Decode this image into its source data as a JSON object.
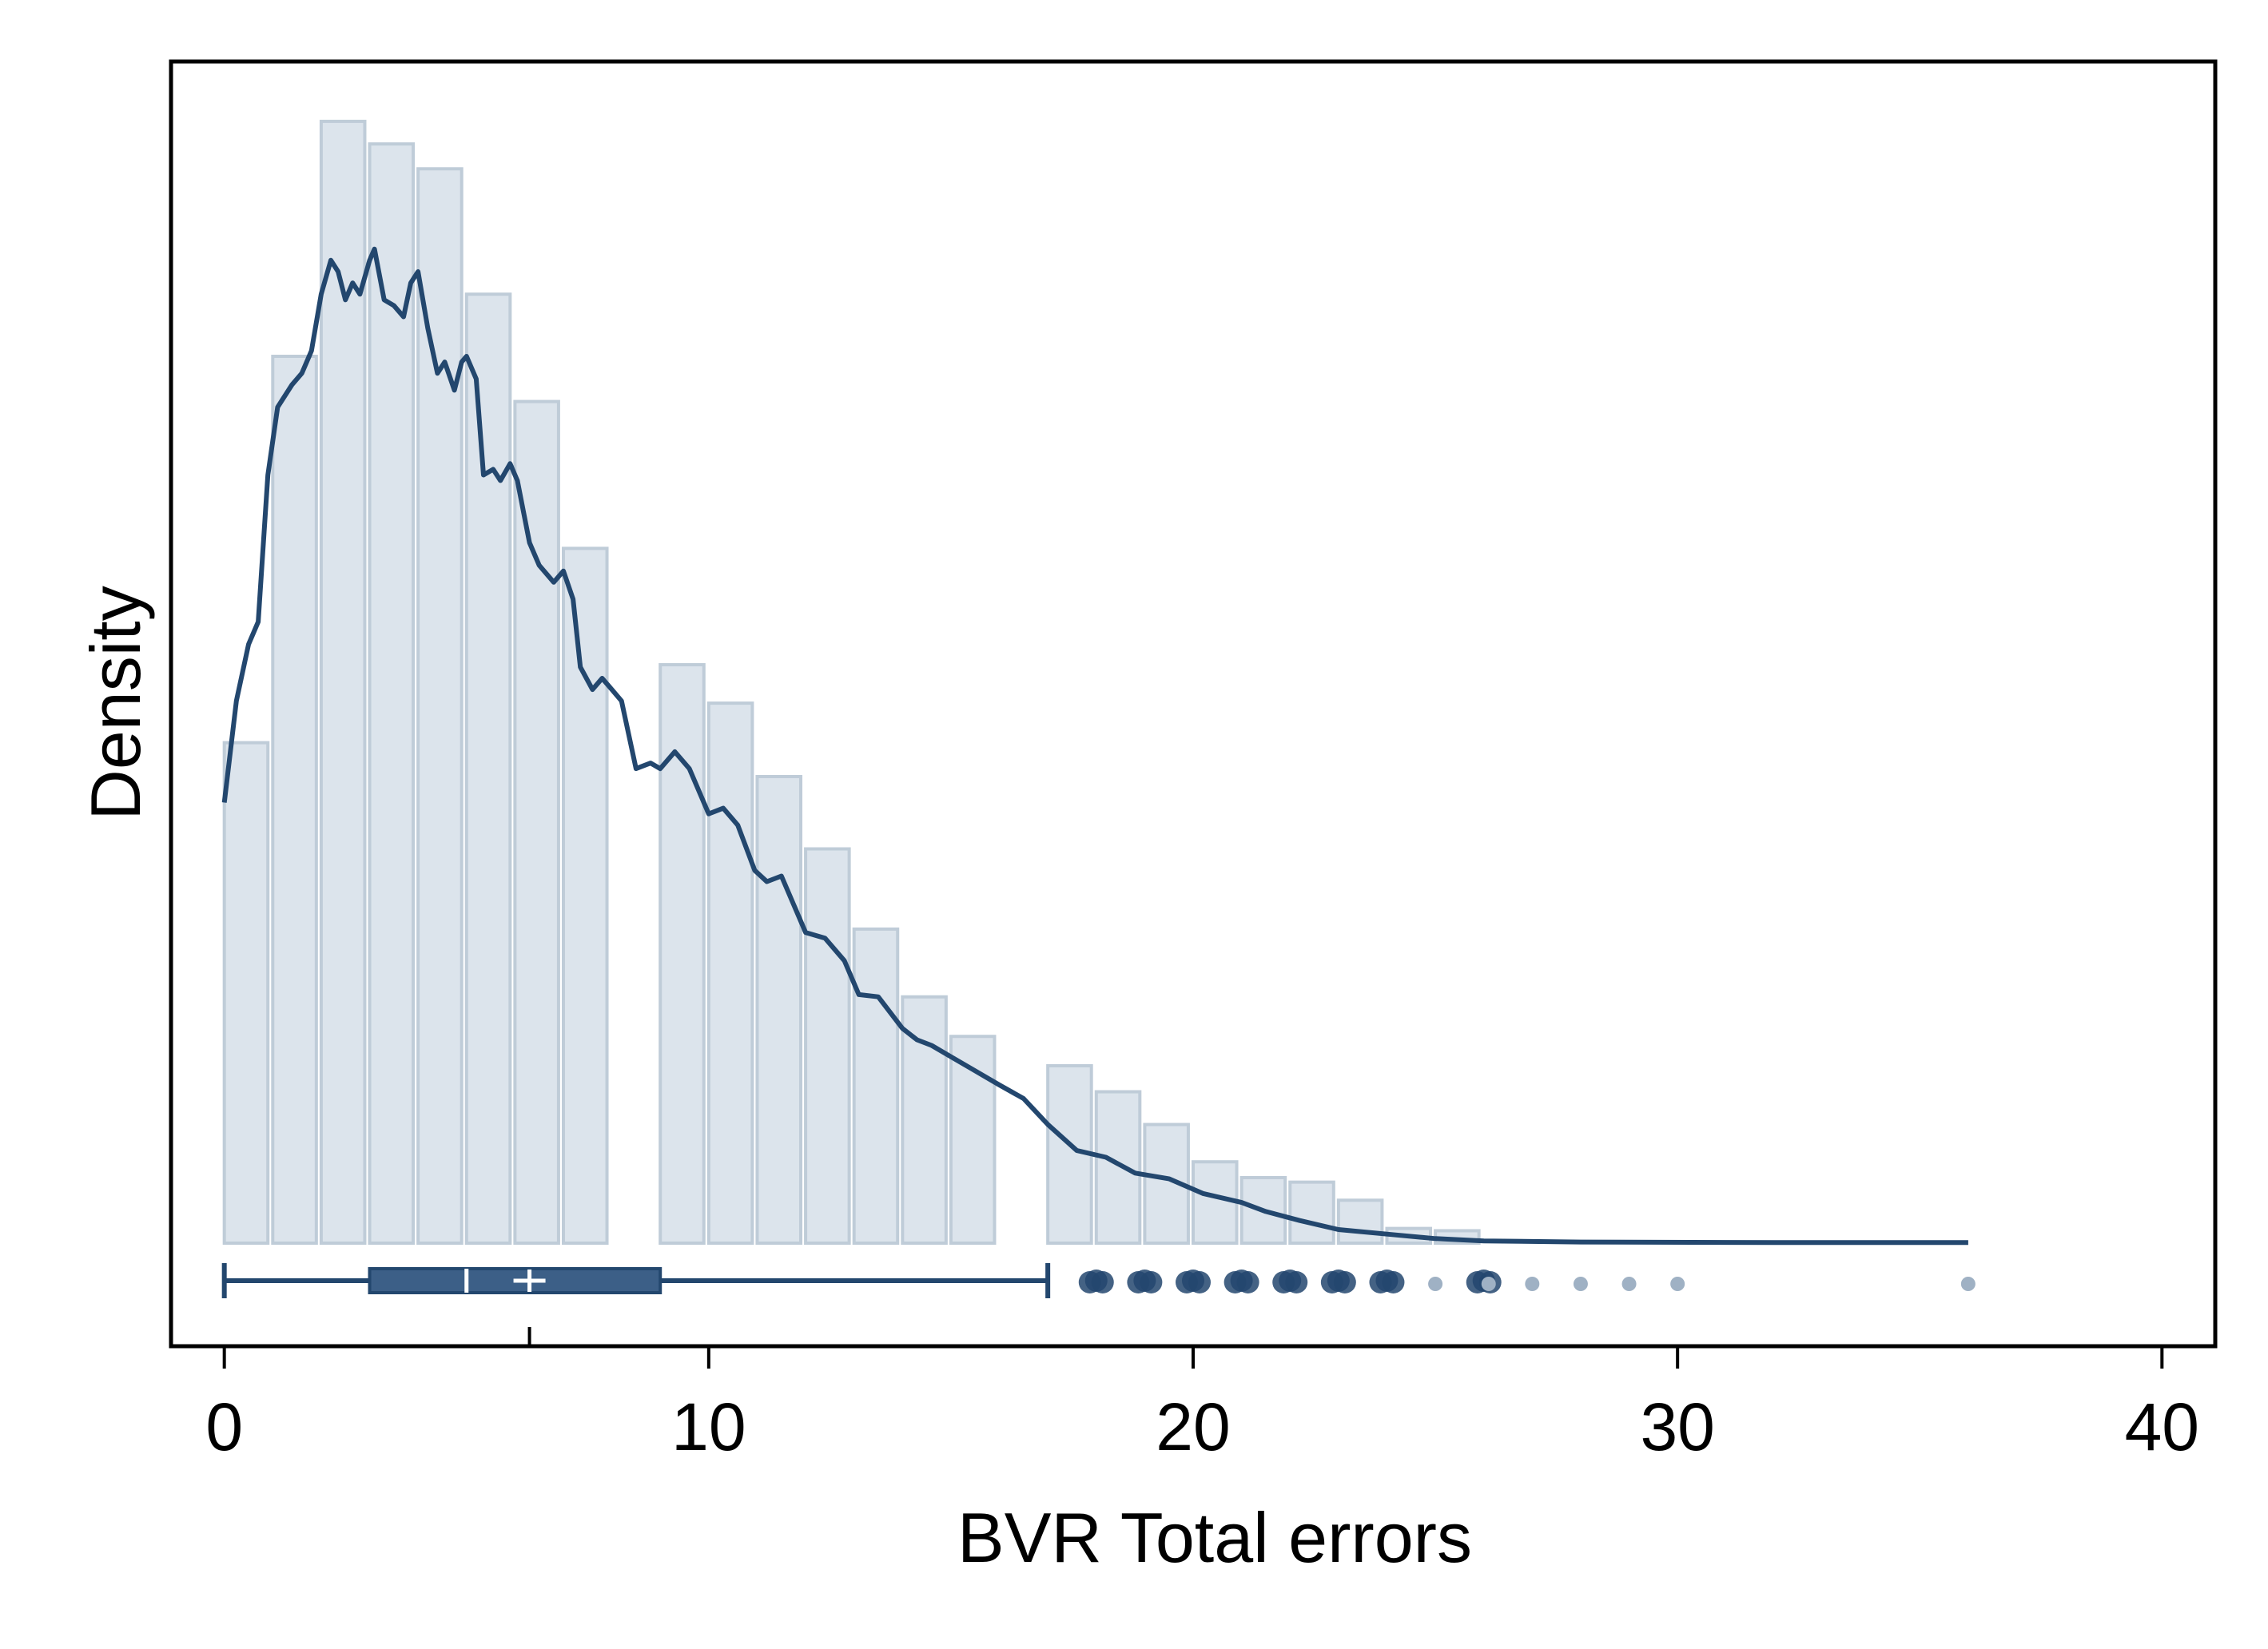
{
  "chart_data": {
    "type": "histogram",
    "xlabel": "BVR Total errors",
    "ylabel": "Density",
    "xlim": [
      -1.1,
      41.1
    ],
    "xticks": [
      0,
      10,
      20,
      30,
      40
    ],
    "y_ticks_shown": false,
    "grid": false,
    "colors": {
      "bar_fill": "#dce4ec",
      "bar_stroke": "#bfccd8",
      "line": "#23476e",
      "box": "#3c5f87",
      "outlier_strong": "#23476e",
      "outlier_faint": "#9fb1c4"
    },
    "histogram": {
      "bin_width": 0.9,
      "bins": [
        {
          "x": 0,
          "density": 0.443
        },
        {
          "x": 1,
          "density": 0.785
        },
        {
          "x": 2,
          "density": 0.993
        },
        {
          "x": 3,
          "density": 0.973
        },
        {
          "x": 4,
          "density": 0.951
        },
        {
          "x": 5,
          "density": 0.84
        },
        {
          "x": 6,
          "density": 0.745
        },
        {
          "x": 7,
          "density": 0.615
        },
        {
          "x": 9,
          "density": 0.512
        },
        {
          "x": 10,
          "density": 0.478
        },
        {
          "x": 11,
          "density": 0.413
        },
        {
          "x": 12,
          "density": 0.349
        },
        {
          "x": 13,
          "density": 0.278
        },
        {
          "x": 14,
          "density": 0.218
        },
        {
          "x": 15,
          "density": 0.183
        },
        {
          "x": 17,
          "density": 0.157
        },
        {
          "x": 18,
          "density": 0.134
        },
        {
          "x": 19,
          "density": 0.105
        },
        {
          "x": 20,
          "density": 0.072
        },
        {
          "x": 21,
          "density": 0.058
        },
        {
          "x": 22,
          "density": 0.054
        },
        {
          "x": 23,
          "density": 0.038
        },
        {
          "x": 24,
          "density": 0.013
        },
        {
          "x": 25,
          "density": 0.011
        }
      ]
    },
    "density_curve": [
      [
        0,
        0.39
      ],
      [
        0.25,
        0.48
      ],
      [
        0.5,
        0.53
      ],
      [
        0.7,
        0.55
      ],
      [
        0.9,
        0.68
      ],
      [
        1.1,
        0.74
      ],
      [
        1.4,
        0.76
      ],
      [
        1.6,
        0.77
      ],
      [
        1.8,
        0.79
      ],
      [
        2.0,
        0.84
      ],
      [
        2.2,
        0.87
      ],
      [
        2.35,
        0.86
      ],
      [
        2.5,
        0.835
      ],
      [
        2.65,
        0.85
      ],
      [
        2.8,
        0.84
      ],
      [
        3.0,
        0.87
      ],
      [
        3.1,
        0.88
      ],
      [
        3.3,
        0.835
      ],
      [
        3.5,
        0.83
      ],
      [
        3.7,
        0.82
      ],
      [
        3.85,
        0.85
      ],
      [
        4.0,
        0.86
      ],
      [
        4.2,
        0.81
      ],
      [
        4.4,
        0.77
      ],
      [
        4.55,
        0.78
      ],
      [
        4.75,
        0.755
      ],
      [
        4.9,
        0.78
      ],
      [
        5.0,
        0.785
      ],
      [
        5.2,
        0.765
      ],
      [
        5.35,
        0.68
      ],
      [
        5.55,
        0.685
      ],
      [
        5.7,
        0.675
      ],
      [
        5.9,
        0.69
      ],
      [
        6.05,
        0.675
      ],
      [
        6.3,
        0.62
      ],
      [
        6.5,
        0.6
      ],
      [
        6.8,
        0.585
      ],
      [
        7.0,
        0.595
      ],
      [
        7.2,
        0.57
      ],
      [
        7.35,
        0.51
      ],
      [
        7.6,
        0.49
      ],
      [
        7.8,
        0.5
      ],
      [
        8.0,
        0.49
      ],
      [
        8.2,
        0.48
      ],
      [
        8.5,
        0.42
      ],
      [
        8.8,
        0.425
      ],
      [
        9.0,
        0.42
      ],
      [
        9.3,
        0.435
      ],
      [
        9.6,
        0.42
      ],
      [
        10.0,
        0.38
      ],
      [
        10.3,
        0.385
      ],
      [
        10.6,
        0.37
      ],
      [
        10.95,
        0.33
      ],
      [
        11.2,
        0.32
      ],
      [
        11.5,
        0.325
      ],
      [
        12.0,
        0.275
      ],
      [
        12.4,
        0.27
      ],
      [
        12.8,
        0.25
      ],
      [
        13.1,
        0.22
      ],
      [
        13.5,
        0.218
      ],
      [
        14.0,
        0.19
      ],
      [
        14.3,
        0.18
      ],
      [
        14.6,
        0.175
      ],
      [
        15.0,
        0.165
      ],
      [
        15.4,
        0.155
      ],
      [
        16.0,
        0.14
      ],
      [
        16.5,
        0.128
      ],
      [
        17.0,
        0.105
      ],
      [
        17.6,
        0.082
      ],
      [
        18.2,
        0.076
      ],
      [
        18.8,
        0.062
      ],
      [
        19.5,
        0.057
      ],
      [
        20.2,
        0.044
      ],
      [
        21.0,
        0.036
      ],
      [
        21.5,
        0.028
      ],
      [
        22.2,
        0.02
      ],
      [
        23.0,
        0.012
      ],
      [
        24.0,
        0.008
      ],
      [
        25.0,
        0.004
      ],
      [
        26.0,
        0.002
      ],
      [
        28.0,
        0.001
      ],
      [
        32.0,
        0.0005
      ],
      [
        36.0,
        0.0005
      ]
    ],
    "boxplot": {
      "whisker_low": 0,
      "q1": 3,
      "median": 5,
      "mean": 6.3,
      "q3": 9,
      "whisker_high": 17,
      "outliers_strong": [
        18,
        19,
        20,
        21,
        22,
        23,
        24,
        26
      ],
      "outliers_faint": [
        25,
        26.1,
        27,
        28,
        29,
        30,
        36
      ]
    }
  }
}
